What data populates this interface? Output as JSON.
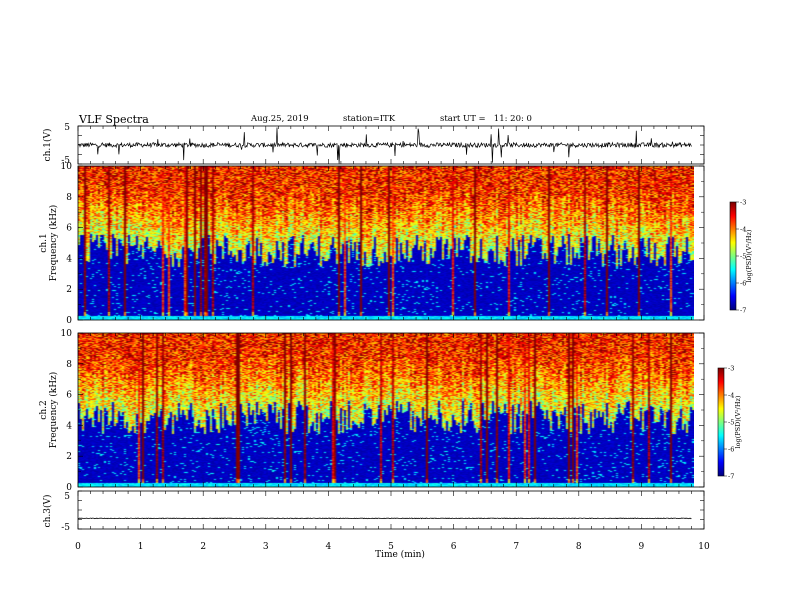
{
  "header": {
    "title": "VLF Spectra",
    "date": "Aug.25, 2019",
    "station": "station=ITK",
    "start": "start UT =   11: 20: 0"
  },
  "chart_data": [
    {
      "type": "line",
      "ylabel": "ch.1(V)",
      "yticks": [
        "5",
        "-5"
      ],
      "ylim": [
        -5,
        5
      ],
      "xlim": [
        0,
        10
      ],
      "baseline": 0,
      "noise_amplitude": 0.6
    },
    {
      "type": "heatmap",
      "ylabel_top": "ch.1",
      "ylabel": "Frequency (kHz)",
      "yticks": [
        "0",
        "2",
        "4",
        "6",
        "8",
        "10"
      ],
      "ylim": [
        0,
        10
      ],
      "xlim": [
        0,
        9.8
      ],
      "colorbar": {
        "label": "log(PSD)(V²/Hz)",
        "ticks": [
          "-3",
          "-4",
          "-5",
          "-6",
          "-7"
        ],
        "range": [
          -7,
          -3
        ]
      },
      "noise_floor_khz": 4.5,
      "band_top_khz": 10
    },
    {
      "type": "heatmap",
      "ylabel_top": "ch.2",
      "ylabel": "Frequency (kHz)",
      "yticks": [
        "0",
        "2",
        "4",
        "6",
        "8",
        "10"
      ],
      "ylim": [
        0,
        10
      ],
      "xlim": [
        0,
        9.8
      ],
      "colorbar": {
        "label": "log(PSD)(V²/Hz)",
        "ticks": [
          "-3",
          "-4",
          "-5",
          "-6",
          "-7"
        ],
        "range": [
          -7,
          -3
        ]
      },
      "noise_floor_khz": 4.5,
      "band_top_khz": 10
    },
    {
      "type": "line",
      "ylabel": "ch.3(V)",
      "yticks": [
        "5",
        "-5"
      ],
      "ylim": [
        -5,
        5
      ],
      "xlim": [
        0,
        10
      ],
      "baseline": -2.2,
      "noise_amplitude": 0.08
    }
  ],
  "xaxis": {
    "label": "Time (min)",
    "ticks": [
      "0",
      "1",
      "2",
      "3",
      "4",
      "5",
      "6",
      "7",
      "8",
      "9",
      "10"
    ],
    "xlim": [
      0,
      10
    ]
  }
}
